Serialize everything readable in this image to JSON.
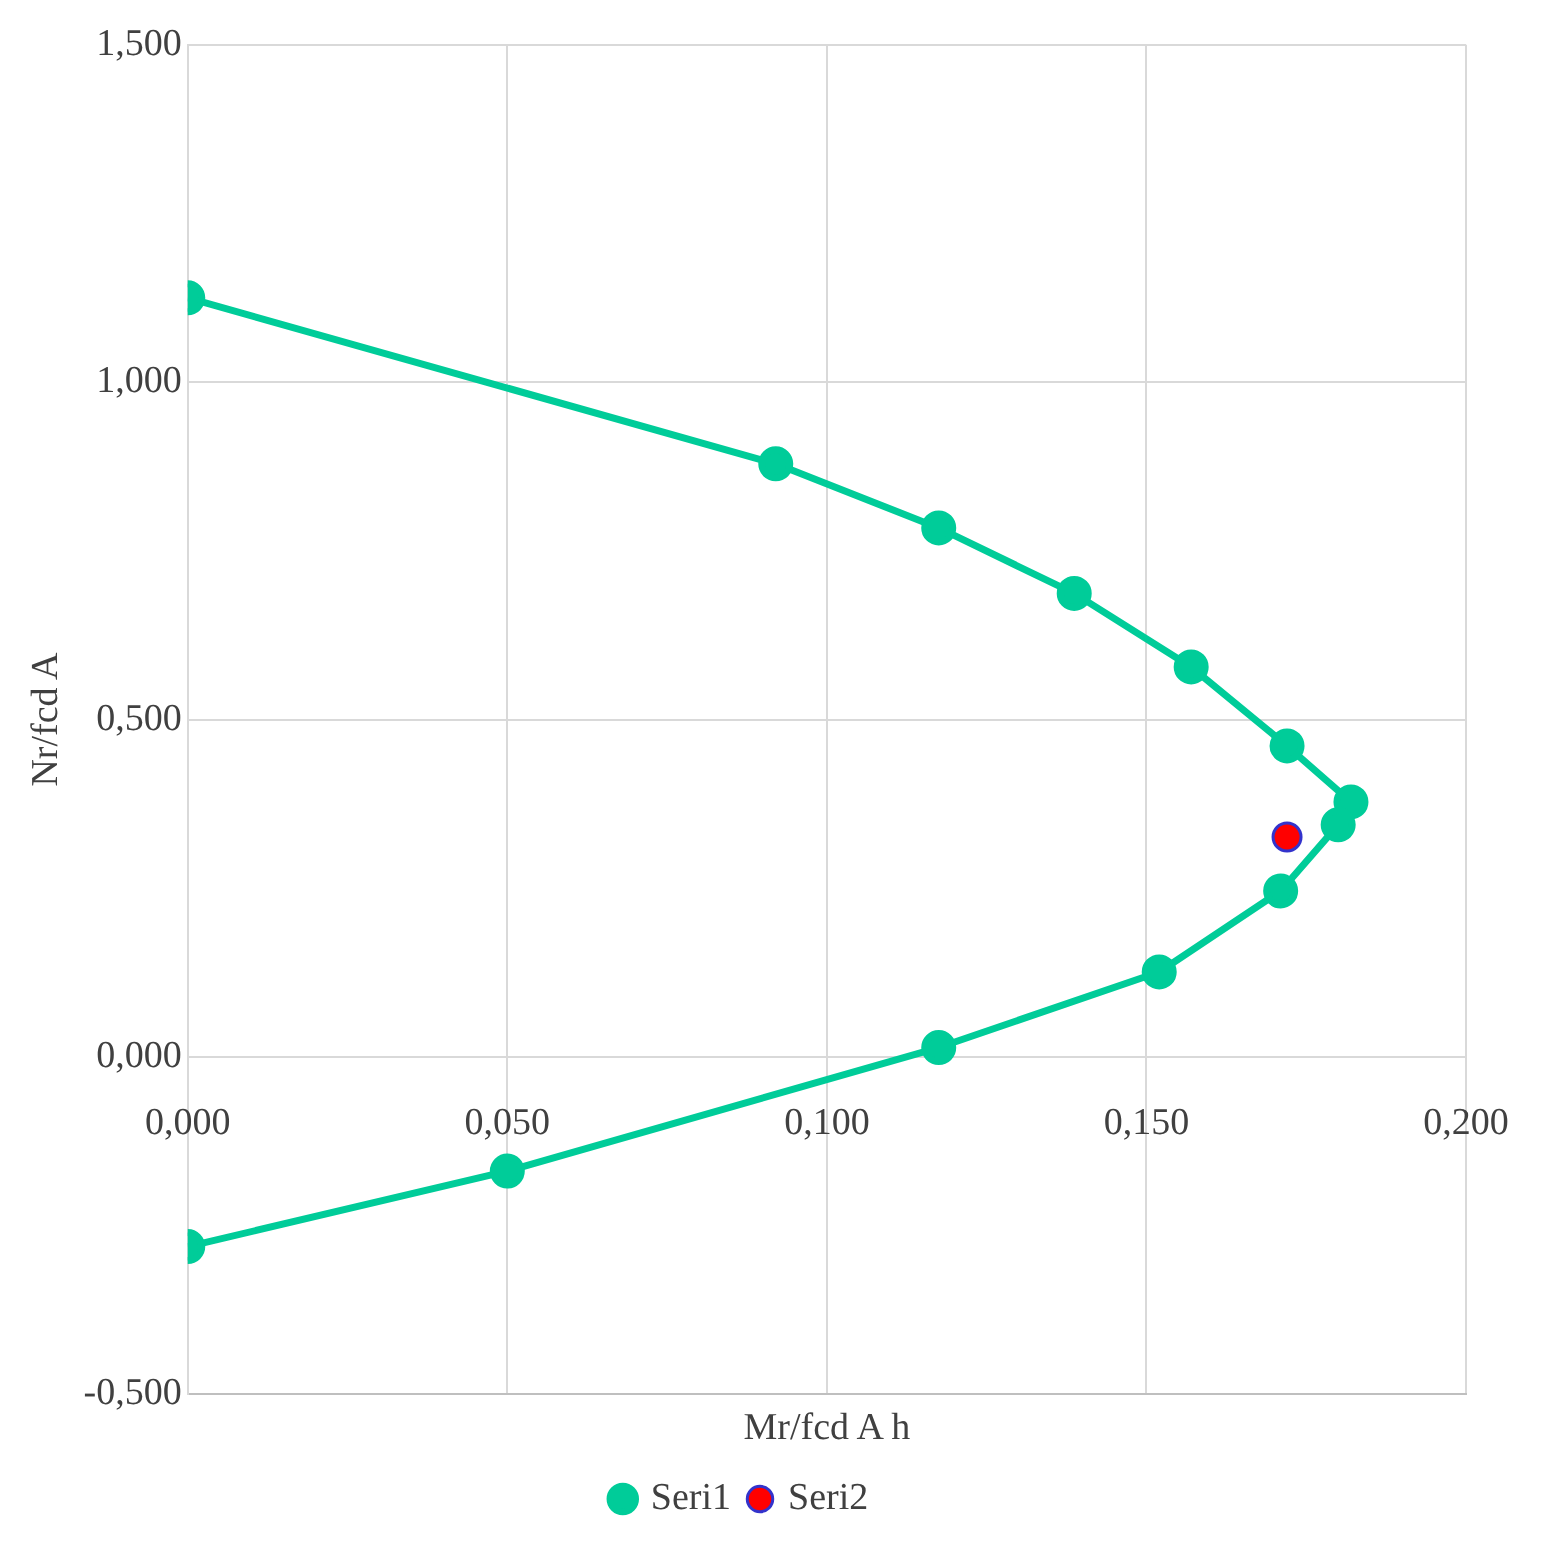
{
  "chart_data": {
    "type": "line",
    "xlabel": "Mr/fcd A h",
    "ylabel": "Nr/fcd A",
    "xlim": [
      0,
      0.2
    ],
    "ylim": [
      -0.5,
      1.5
    ],
    "xticks": [
      {
        "value": 0,
        "label": "0,000"
      },
      {
        "value": 0.05,
        "label": "0,050"
      },
      {
        "value": 0.1,
        "label": "0,100"
      },
      {
        "value": 0.15,
        "label": "0,150"
      },
      {
        "value": 0.2,
        "label": "0,200"
      }
    ],
    "yticks": [
      {
        "value": -0.5,
        "label": "-0,500"
      },
      {
        "value": 0,
        "label": "0,000"
      },
      {
        "value": 0.5,
        "label": "0,500"
      },
      {
        "value": 1,
        "label": "1,000"
      },
      {
        "value": 1.5,
        "label": "1,500"
      }
    ],
    "grid": true,
    "legend": "bottom",
    "marker": "circle",
    "line_style": "solid",
    "series": [
      {
        "name": "Seri1",
        "color": "#00cc99",
        "x": [
          0,
          0.092,
          0.1175,
          0.1387,
          0.157,
          0.172,
          0.182,
          0.18,
          0.171,
          0.152,
          0.1175,
          0.05,
          0
        ],
        "values": [
          1.125,
          0.879,
          0.784,
          0.687,
          0.578,
          0.461,
          0.378,
          0.344,
          0.246,
          0.126,
          0.014,
          -0.169,
          -0.281
        ]
      },
      {
        "name": "Seri2",
        "type": "scatter",
        "color": "#ff0000",
        "x": [
          0.172
        ],
        "values": [
          0.326
        ]
      }
    ]
  }
}
